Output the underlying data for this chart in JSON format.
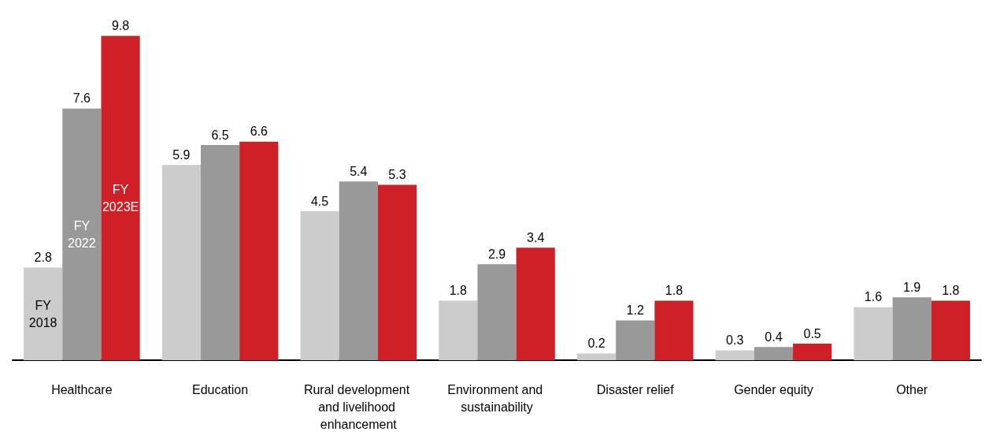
{
  "chart_data": {
    "type": "bar",
    "categories": [
      "Healthcare",
      "Education",
      "Rural development and livelihood enhancement",
      "Environment and sustainability",
      "Disaster relief",
      "Gender equity",
      "Other"
    ],
    "series": [
      {
        "name": "FY 2018",
        "color": "#cccccc",
        "values": [
          2.8,
          5.9,
          4.5,
          1.8,
          0.2,
          0.3,
          1.6
        ]
      },
      {
        "name": "FY 2022",
        "color": "#999999",
        "values": [
          7.6,
          6.5,
          5.4,
          2.9,
          1.2,
          0.4,
          1.9
        ]
      },
      {
        "name": "FY 2023E",
        "color": "#d02027",
        "values": [
          9.8,
          6.6,
          5.3,
          3.4,
          1.8,
          0.5,
          1.8
        ]
      }
    ],
    "data_labels": true
  }
}
